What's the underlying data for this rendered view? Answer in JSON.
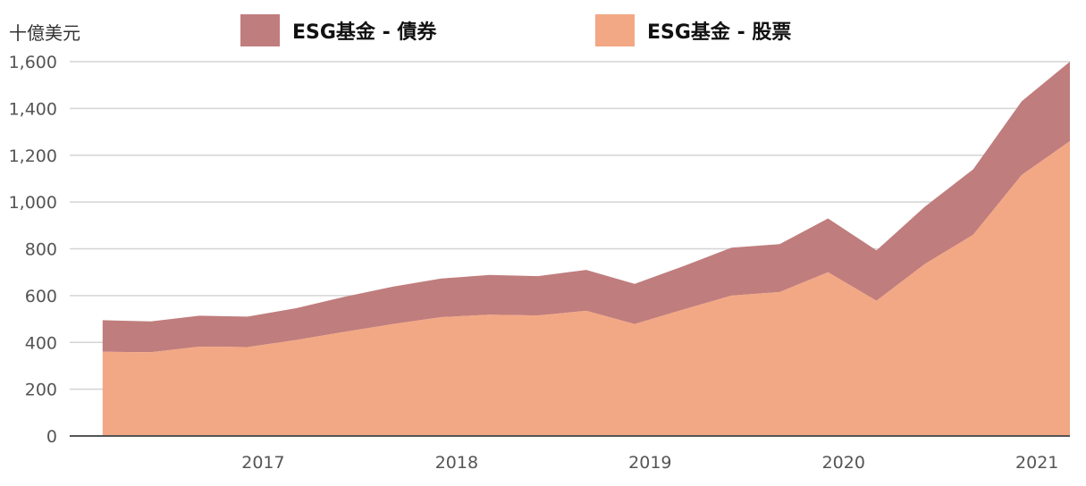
{
  "chart_data": {
    "type": "area",
    "stacked": true,
    "unit_label": "十億美元",
    "x": [
      2016.25,
      2016.5,
      2016.75,
      2017.0,
      2017.25,
      2017.5,
      2017.75,
      2018.0,
      2018.25,
      2018.5,
      2018.75,
      2019.0,
      2019.25,
      2019.5,
      2019.75,
      2020.0,
      2020.25,
      2020.5,
      2020.75,
      2021.0,
      2021.25
    ],
    "x_ticks": [
      "2017",
      "2018",
      "2019",
      "2020",
      "2021"
    ],
    "y_ticks": [
      "0",
      "200",
      "400",
      "600",
      "800",
      "1,000",
      "1,200",
      "1,400",
      "1,600"
    ],
    "ylim": [
      0,
      1600
    ],
    "grid": true,
    "legend_position": "top",
    "series": [
      {
        "name": "ESG基金 - 股票",
        "color": "#f2a884",
        "values": [
          360,
          358,
          382,
          380,
          410,
          445,
          478,
          508,
          518,
          515,
          535,
          478,
          540,
          600,
          615,
          700,
          578,
          735,
          860,
          1115,
          1260
        ]
      },
      {
        "name": "ESG基金 - 債券",
        "color": "#c07d7d",
        "values": [
          135,
          132,
          132,
          130,
          136,
          150,
          160,
          165,
          170,
          168,
          175,
          172,
          185,
          205,
          205,
          230,
          215,
          245,
          280,
          315,
          340
        ]
      }
    ]
  }
}
